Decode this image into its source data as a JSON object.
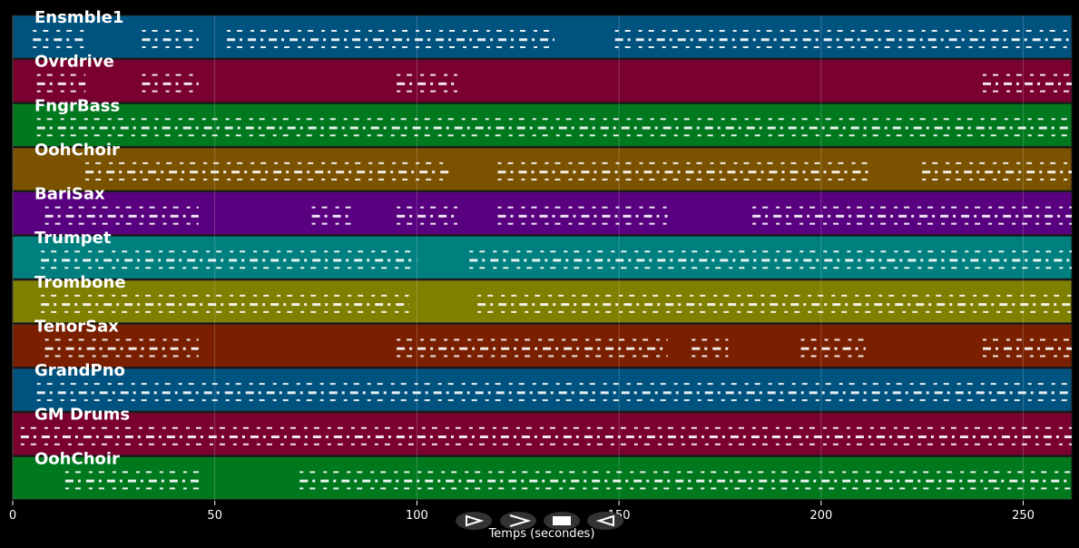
{
  "chart_data": {
    "type": "pianoroll",
    "xlabel": "Temps (secondes)",
    "xlim": [
      0,
      262
    ],
    "xticks": [
      0,
      50,
      100,
      150,
      200,
      250
    ],
    "grid": true,
    "tracks": [
      {
        "name": "Ensmble1",
        "color": "#00527f",
        "notes": [
          [
            5,
            18
          ],
          [
            32,
            46
          ],
          [
            53,
            134
          ],
          [
            149,
            262
          ]
        ]
      },
      {
        "name": "Ovrdrive",
        "color": "#7a0030",
        "notes": [
          [
            6,
            18
          ],
          [
            32,
            46
          ],
          [
            95,
            110
          ],
          [
            240,
            262
          ]
        ]
      },
      {
        "name": "FngrBass",
        "color": "#00781e",
        "notes": [
          [
            6,
            262
          ]
        ]
      },
      {
        "name": "OohChoir",
        "color": "#7a5200",
        "notes": [
          [
            18,
            108
          ],
          [
            120,
            212
          ],
          [
            225,
            262
          ]
        ]
      },
      {
        "name": "BariSax",
        "color": "#58007f",
        "notes": [
          [
            8,
            46
          ],
          [
            74,
            84
          ],
          [
            95,
            110
          ],
          [
            120,
            162
          ],
          [
            183,
            262
          ]
        ]
      },
      {
        "name": "Trumpet",
        "color": "#007f7f",
        "notes": [
          [
            7,
            100
          ],
          [
            113,
            262
          ]
        ]
      },
      {
        "name": "Trombone",
        "color": "#7f7f00",
        "notes": [
          [
            7,
            98
          ],
          [
            115,
            262
          ]
        ]
      },
      {
        "name": "TenorSax",
        "color": "#7a2000",
        "notes": [
          [
            8,
            46
          ],
          [
            95,
            162
          ],
          [
            168,
            177
          ],
          [
            195,
            211
          ],
          [
            240,
            262
          ]
        ]
      },
      {
        "name": "GrandPno",
        "color": "#00527f",
        "notes": [
          [
            6,
            262
          ]
        ]
      },
      {
        "name": "GM Drums",
        "color": "#7a0030",
        "notes": [
          [
            2,
            262
          ]
        ]
      },
      {
        "name": "OohChoir",
        "color": "#00781e",
        "notes": [
          [
            13,
            46
          ],
          [
            71,
            262
          ]
        ]
      }
    ]
  }
}
